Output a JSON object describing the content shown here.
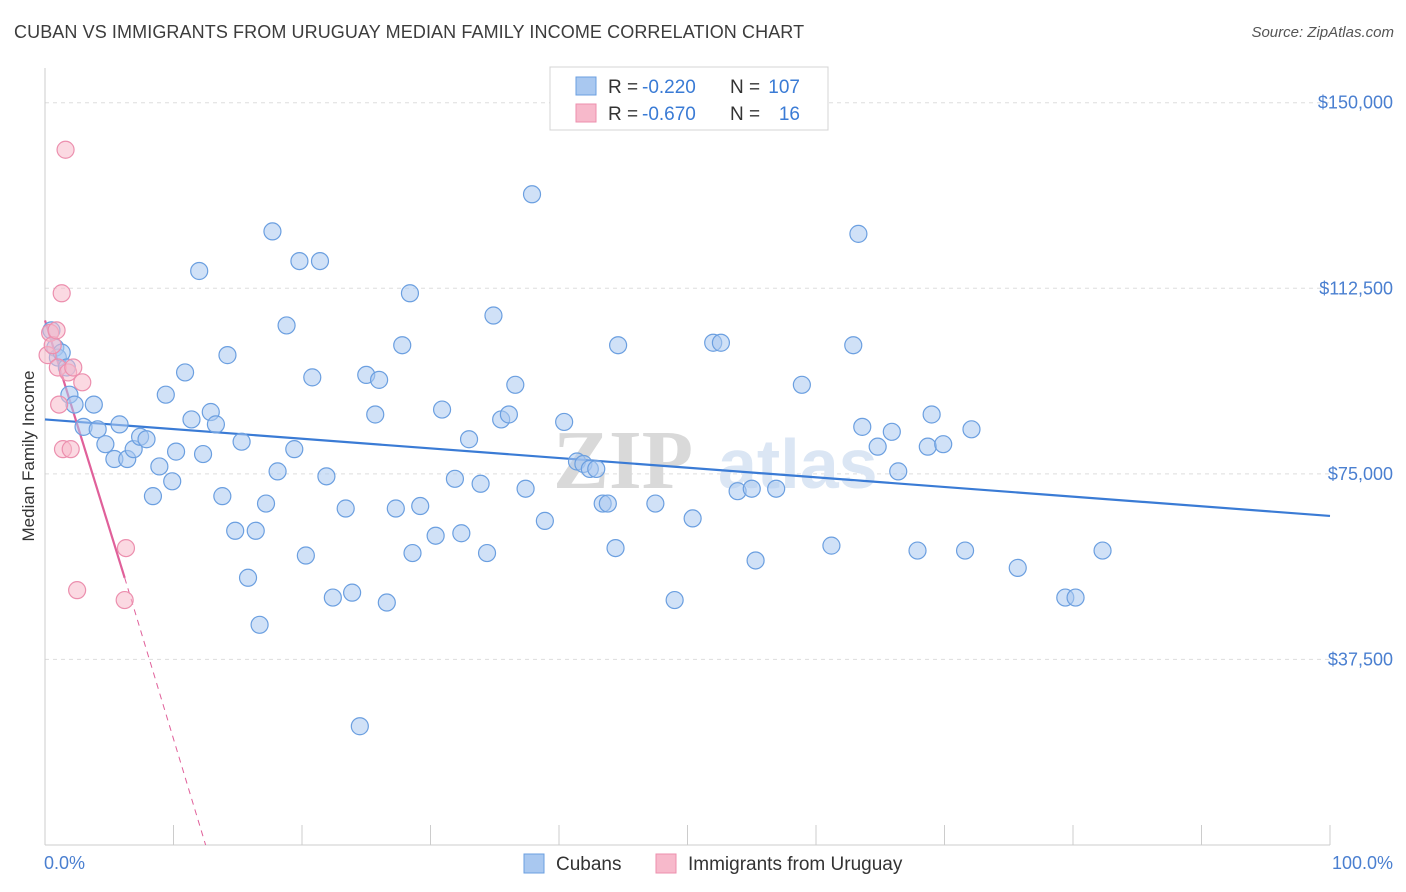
{
  "header": {
    "title": "CUBAN VS IMMIGRANTS FROM URUGUAY MEDIAN FAMILY INCOME CORRELATION CHART",
    "source": "Source: ZipAtlas.com"
  },
  "watermark": {
    "zip": "ZIP",
    "atlas": "atlas"
  },
  "colors": {
    "cubans_fill": "#a9c8f0",
    "cubans_stroke": "#6b9fe0",
    "cubans_line": "#3a7bd5",
    "uruguay_fill": "#f7b9cb",
    "uruguay_stroke": "#ec8fae",
    "uruguay_line": "#e0609a",
    "tick_text": "#4a7fd0",
    "grid": "#dddddd"
  },
  "legend_box": {
    "rows": [
      {
        "r_label": "R =",
        "r_value": "-0.220",
        "n_label": "N =",
        "n_value": "107"
      },
      {
        "r_label": "R =",
        "r_value": "-0.670",
        "n_label": "N =",
        "n_value": "16"
      }
    ]
  },
  "chart_data": {
    "type": "scatter",
    "xlabel": "",
    "ylabel": "Median Family Income",
    "xlim": [
      0,
      100
    ],
    "ylim": [
      0,
      155000
    ],
    "x_tick_labels": [
      "0.0%",
      "100.0%"
    ],
    "y_ticks": [
      37500,
      75000,
      112500,
      150000
    ],
    "y_tick_labels": [
      "$37,500",
      "$75,000",
      "$112,500",
      "$150,000"
    ],
    "grid": "horizontal dashed",
    "legend_position": "bottom",
    "series": [
      {
        "name": "Cubans",
        "color": "#6b9fe0",
        "points": [
          [
            0.5,
            104000
          ],
          [
            0.8,
            100500
          ],
          [
            1.0,
            98500
          ],
          [
            1.3,
            99500
          ],
          [
            1.7,
            96500
          ],
          [
            1.9,
            91000
          ],
          [
            2.3,
            89000
          ],
          [
            3.0,
            84500
          ],
          [
            3.8,
            89000
          ],
          [
            4.1,
            84000
          ],
          [
            4.7,
            81000
          ],
          [
            5.4,
            78000
          ],
          [
            5.8,
            85000
          ],
          [
            6.4,
            78000
          ],
          [
            6.9,
            80000
          ],
          [
            7.4,
            82500
          ],
          [
            7.9,
            82000
          ],
          [
            8.4,
            70500
          ],
          [
            8.9,
            76500
          ],
          [
            9.4,
            91000
          ],
          [
            9.9,
            73500
          ],
          [
            10.2,
            79500
          ],
          [
            10.9,
            95500
          ],
          [
            11.4,
            86000
          ],
          [
            12.0,
            116000
          ],
          [
            12.3,
            79000
          ],
          [
            12.9,
            87500
          ],
          [
            13.3,
            85000
          ],
          [
            13.8,
            70500
          ],
          [
            14.2,
            99000
          ],
          [
            14.8,
            63500
          ],
          [
            15.3,
            81500
          ],
          [
            15.8,
            54000
          ],
          [
            16.4,
            63500
          ],
          [
            16.7,
            44500
          ],
          [
            17.2,
            69000
          ],
          [
            17.7,
            124000
          ],
          [
            18.1,
            75500
          ],
          [
            18.8,
            105000
          ],
          [
            19.4,
            80000
          ],
          [
            19.8,
            118000
          ],
          [
            20.3,
            58500
          ],
          [
            20.8,
            94500
          ],
          [
            21.4,
            118000
          ],
          [
            21.9,
            74500
          ],
          [
            22.4,
            50000
          ],
          [
            23.4,
            68000
          ],
          [
            23.9,
            51000
          ],
          [
            24.5,
            24000
          ],
          [
            25.0,
            95000
          ],
          [
            25.7,
            87000
          ],
          [
            26.0,
            94000
          ],
          [
            26.6,
            49000
          ],
          [
            27.3,
            68000
          ],
          [
            27.8,
            101000
          ],
          [
            28.4,
            111500
          ],
          [
            28.6,
            59000
          ],
          [
            29.2,
            68500
          ],
          [
            30.4,
            62500
          ],
          [
            30.9,
            88000
          ],
          [
            31.9,
            74000
          ],
          [
            32.4,
            63000
          ],
          [
            33.0,
            82000
          ],
          [
            33.9,
            73000
          ],
          [
            34.4,
            59000
          ],
          [
            34.9,
            107000
          ],
          [
            35.5,
            86000
          ],
          [
            36.1,
            87000
          ],
          [
            36.6,
            93000
          ],
          [
            37.4,
            72000
          ],
          [
            37.9,
            131500
          ],
          [
            38.9,
            65500
          ],
          [
            40.4,
            85500
          ],
          [
            41.4,
            77500
          ],
          [
            41.9,
            77000
          ],
          [
            42.4,
            76000
          ],
          [
            42.9,
            76000
          ],
          [
            43.4,
            69000
          ],
          [
            43.8,
            69000
          ],
          [
            44.4,
            60000
          ],
          [
            44.6,
            101000
          ],
          [
            47.5,
            69000
          ],
          [
            49.0,
            49500
          ],
          [
            50.4,
            66000
          ],
          [
            52.0,
            101500
          ],
          [
            52.6,
            101500
          ],
          [
            53.9,
            71500
          ],
          [
            55.0,
            72000
          ],
          [
            55.3,
            57500
          ],
          [
            56.9,
            72000
          ],
          [
            58.9,
            93000
          ],
          [
            61.2,
            60500
          ],
          [
            62.9,
            101000
          ],
          [
            63.3,
            123500
          ],
          [
            63.6,
            84500
          ],
          [
            64.8,
            80500
          ],
          [
            65.9,
            83500
          ],
          [
            66.4,
            75500
          ],
          [
            67.9,
            59500
          ],
          [
            68.7,
            80500
          ],
          [
            69.0,
            87000
          ],
          [
            69.9,
            81000
          ],
          [
            71.6,
            59500
          ],
          [
            72.1,
            84000
          ],
          [
            75.7,
            56000
          ],
          [
            79.4,
            50000
          ],
          [
            80.2,
            50000
          ],
          [
            82.3,
            59500
          ]
        ]
      },
      {
        "name": "Immigrants from Uruguay",
        "color": "#ec8fae",
        "points": [
          [
            0.2,
            99000
          ],
          [
            0.4,
            103500
          ],
          [
            0.6,
            101000
          ],
          [
            0.9,
            104000
          ],
          [
            1.0,
            96500
          ],
          [
            1.1,
            89000
          ],
          [
            1.3,
            111500
          ],
          [
            1.4,
            80000
          ],
          [
            1.6,
            140500
          ],
          [
            1.8,
            95500
          ],
          [
            2.0,
            80000
          ],
          [
            2.2,
            96500
          ],
          [
            2.5,
            51500
          ],
          [
            2.9,
            93500
          ],
          [
            6.2,
            49500
          ],
          [
            6.3,
            60000
          ]
        ]
      }
    ],
    "trend_lines": [
      {
        "series": "Cubans",
        "x": [
          0,
          100
        ],
        "y": [
          86000,
          66500
        ],
        "style": "solid"
      },
      {
        "series": "Immigrants from Uruguay",
        "x": [
          0,
          6.2
        ],
        "y": [
          106000,
          54000
        ],
        "style": "solid"
      },
      {
        "series": "Immigrants from Uruguay",
        "x": [
          6.2,
          12.5
        ],
        "y": [
          54000,
          0
        ],
        "style": "dashed"
      }
    ]
  }
}
